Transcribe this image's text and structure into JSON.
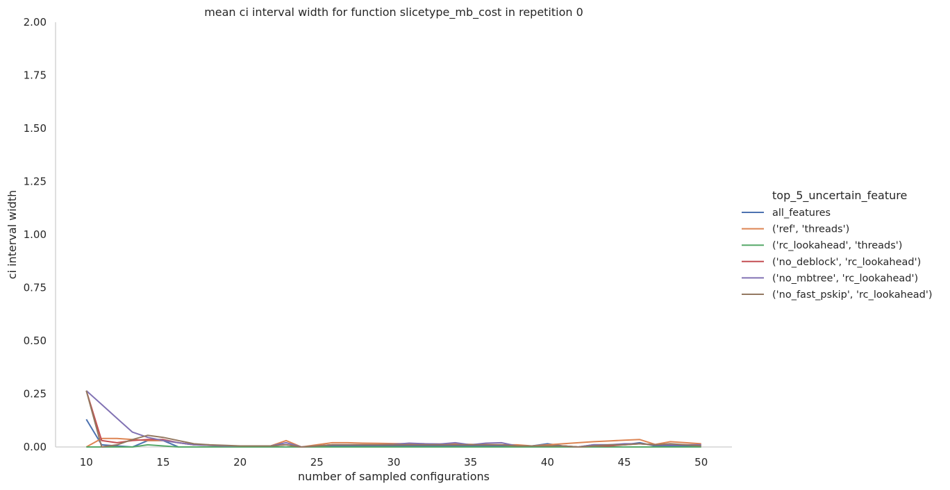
{
  "chart_data": {
    "type": "line",
    "title": "mean ci interval width for function slicetype_mb_cost in repetition 0",
    "xlabel": "number of sampled configurations",
    "ylabel": "ci interval width",
    "xlim": [
      8,
      52
    ],
    "ylim": [
      0,
      2.0
    ],
    "xticks": [
      10,
      15,
      20,
      25,
      30,
      35,
      40,
      45,
      50
    ],
    "yticks": [
      0.0,
      0.25,
      0.5,
      0.75,
      1.0,
      1.25,
      1.5,
      1.75,
      2.0
    ],
    "ytick_labels": [
      "0.00",
      "0.25",
      "0.50",
      "0.75",
      "1.00",
      "1.25",
      "1.50",
      "1.75",
      "2.00"
    ],
    "grid": false,
    "legend": {
      "title": "top_5_uncertain_feature",
      "placement": "right"
    },
    "series": [
      {
        "name": "all_features",
        "color": "#4c72b0",
        "x": [
          10,
          11,
          12,
          13,
          14,
          15,
          16,
          17,
          18,
          19,
          20,
          21,
          22,
          23,
          24,
          25,
          26,
          27,
          28,
          29,
          30,
          31,
          32,
          33,
          34,
          35,
          36,
          37,
          38,
          39,
          40,
          41,
          42,
          43,
          44,
          45,
          46,
          47,
          48,
          49,
          50
        ],
        "values": [
          0.13,
          0.01,
          0.005,
          0.0,
          0.03,
          0.03,
          0.0,
          0.0,
          0.0,
          0.0,
          0.0,
          0.0,
          0.0,
          0.0,
          0.0,
          0.0,
          0.005,
          0.005,
          0.005,
          0.005,
          0.005,
          0.005,
          0.005,
          0.005,
          0.005,
          0.005,
          0.005,
          0.005,
          0.005,
          0.005,
          0.015,
          0.005,
          0.0,
          0.01,
          0.01,
          0.01,
          0.02,
          0.005,
          0.005,
          0.005,
          0.005
        ]
      },
      {
        "name": "('ref', 'threads')",
        "color": "#dd8452",
        "x": [
          10,
          11,
          12,
          13,
          14,
          15,
          16,
          17,
          18,
          19,
          20,
          21,
          22,
          23,
          24,
          25,
          26,
          27,
          28,
          29,
          30,
          31,
          32,
          33,
          34,
          35,
          36,
          37,
          38,
          39,
          40,
          41,
          42,
          43,
          44,
          45,
          46,
          47,
          48,
          49,
          50
        ],
        "values": [
          0.0,
          0.04,
          0.04,
          0.035,
          0.03,
          0.03,
          0.02,
          0.01,
          0.01,
          0.005,
          0.005,
          0.005,
          0.005,
          0.03,
          0.0,
          0.01,
          0.02,
          0.02,
          0.018,
          0.017,
          0.016,
          0.015,
          0.015,
          0.014,
          0.013,
          0.012,
          0.011,
          0.01,
          0.01,
          0.005,
          0.01,
          0.015,
          0.02,
          0.025,
          0.028,
          0.032,
          0.035,
          0.012,
          0.025,
          0.02,
          0.015
        ]
      },
      {
        "name": "('rc_lookahead', 'threads')",
        "color": "#55a868",
        "x": [
          10,
          11,
          12,
          13,
          14,
          15,
          16,
          17,
          18,
          19,
          20,
          21,
          22,
          23,
          24,
          25,
          26,
          27,
          28,
          29,
          30,
          31,
          32,
          33,
          34,
          35,
          36,
          37,
          38,
          39,
          40,
          41,
          42,
          43,
          44,
          45,
          46,
          47,
          48,
          49,
          50
        ],
        "values": [
          0.0,
          0.0,
          0.0,
          0.0,
          0.01,
          0.005,
          0.0,
          0.0,
          0.0,
          0.0,
          0.0,
          0.0,
          0.0,
          0.0,
          0.0,
          0.0,
          0.0,
          0.0,
          0.0,
          0.0,
          0.0,
          0.0,
          0.0,
          0.0,
          0.0,
          0.0,
          0.0,
          0.0,
          0.0,
          0.0,
          0.0,
          0.0,
          0.0,
          0.0,
          0.0,
          0.0,
          0.0,
          0.0,
          0.0,
          0.0,
          0.0
        ]
      },
      {
        "name": "('no_deblock', 'rc_lookahead')",
        "color": "#c44e52",
        "x": [
          10,
          11,
          12,
          13,
          14,
          15,
          16,
          17,
          18,
          19,
          20,
          21,
          22,
          23,
          24,
          25,
          26,
          27,
          28,
          29,
          30,
          31,
          32,
          33,
          34,
          35,
          36,
          37,
          38,
          39,
          40,
          41,
          42,
          43,
          44,
          45,
          46,
          47,
          48,
          49,
          50
        ],
        "values": [
          0.265,
          0.03,
          0.02,
          0.03,
          0.035,
          0.035,
          0.02,
          0.01,
          0.008,
          0.005,
          0.005,
          0.005,
          0.005,
          0.01,
          0.0,
          0.005,
          0.01,
          0.01,
          0.01,
          0.01,
          0.01,
          0.01,
          0.01,
          0.01,
          0.01,
          0.01,
          0.01,
          0.01,
          0.005,
          0.005,
          0.005,
          0.005,
          0.0,
          0.005,
          0.005,
          0.01,
          0.015,
          0.01,
          0.01,
          0.01,
          0.01
        ]
      },
      {
        "name": "('no_mbtree', 'rc_lookahead')",
        "color": "#8172b3",
        "x": [
          10,
          11,
          12,
          13,
          14,
          15,
          16,
          17,
          18,
          19,
          20,
          21,
          22,
          23,
          24,
          25,
          26,
          27,
          28,
          29,
          30,
          31,
          32,
          33,
          34,
          35,
          36,
          37,
          38,
          39,
          40,
          41,
          42,
          43,
          44,
          45,
          46,
          47,
          48,
          49,
          50
        ],
        "values": [
          0.265,
          0.2,
          0.135,
          0.07,
          0.045,
          0.03,
          0.02,
          0.01,
          0.008,
          0.005,
          0.005,
          0.005,
          0.005,
          0.02,
          0.0,
          0.005,
          0.01,
          0.01,
          0.01,
          0.01,
          0.012,
          0.018,
          0.015,
          0.014,
          0.02,
          0.01,
          0.018,
          0.02,
          0.005,
          0.005,
          0.005,
          0.005,
          0.0,
          0.01,
          0.01,
          0.015,
          0.015,
          0.01,
          0.01,
          0.01,
          0.01
        ]
      },
      {
        "name": "('no_fast_pskip', 'rc_lookahead')",
        "color": "#937860",
        "x": [
          10,
          11,
          12,
          13,
          14,
          15,
          16,
          17,
          18,
          19,
          20,
          21,
          22,
          23,
          24,
          25,
          26,
          27,
          28,
          29,
          30,
          31,
          32,
          33,
          34,
          35,
          36,
          37,
          38,
          39,
          40,
          41,
          42,
          43,
          44,
          45,
          46,
          47,
          48,
          49,
          50
        ],
        "values": [
          0.265,
          0.0,
          0.01,
          0.035,
          0.055,
          0.045,
          0.03,
          0.015,
          0.01,
          0.008,
          0.005,
          0.005,
          0.005,
          0.01,
          0.0,
          0.005,
          0.01,
          0.01,
          0.01,
          0.01,
          0.01,
          0.01,
          0.01,
          0.01,
          0.01,
          0.01,
          0.01,
          0.01,
          0.005,
          0.005,
          0.005,
          0.005,
          0.0,
          0.005,
          0.01,
          0.01,
          0.015,
          0.01,
          0.015,
          0.01,
          0.005
        ]
      }
    ]
  }
}
